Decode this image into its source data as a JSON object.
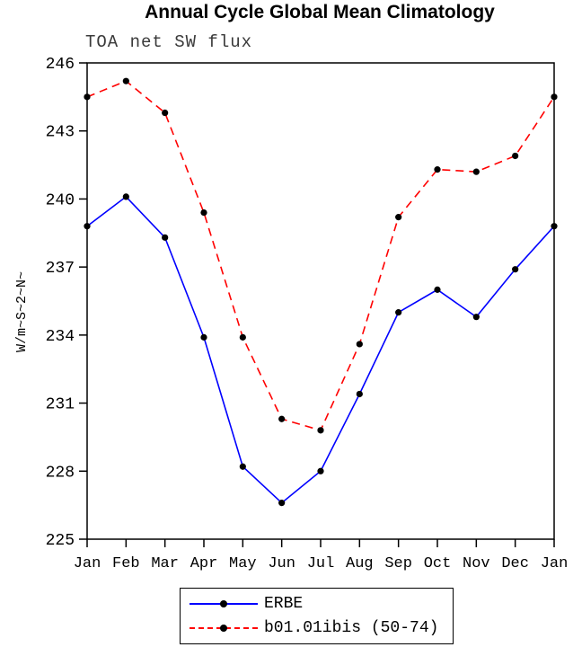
{
  "chart_data": {
    "type": "line",
    "title": "Annual Cycle Global Mean Climatology",
    "subtitle": "TOA net SW flux",
    "xlabel": "",
    "ylabel": "W/m~S~2~N~",
    "x_tick_labels": [
      "Jan",
      "Feb",
      "Mar",
      "Apr",
      "May",
      "Jun",
      "Jul",
      "Aug",
      "Sep",
      "Oct",
      "Nov",
      "Dec",
      "Jan"
    ],
    "ylim": [
      225,
      246
    ],
    "y_ticks": [
      225,
      228,
      231,
      234,
      237,
      240,
      243,
      246
    ],
    "grid": false,
    "legend_position": "bottom-center",
    "marker": "filled-circle",
    "marker_color": "#000000",
    "series": [
      {
        "name": "ERBE",
        "color": "#0000ff",
        "line_style": "solid",
        "values": [
          238.8,
          240.1,
          238.3,
          233.9,
          228.2,
          226.6,
          228.0,
          231.4,
          235.0,
          236.0,
          234.8,
          236.9,
          238.8
        ]
      },
      {
        "name": "b01.01ibis (50-74)",
        "color": "#ff0000",
        "line_style": "dashed",
        "values": [
          244.5,
          245.2,
          243.8,
          239.4,
          233.9,
          230.3,
          229.8,
          233.6,
          239.2,
          241.3,
          241.2,
          241.9,
          244.5
        ]
      }
    ]
  }
}
